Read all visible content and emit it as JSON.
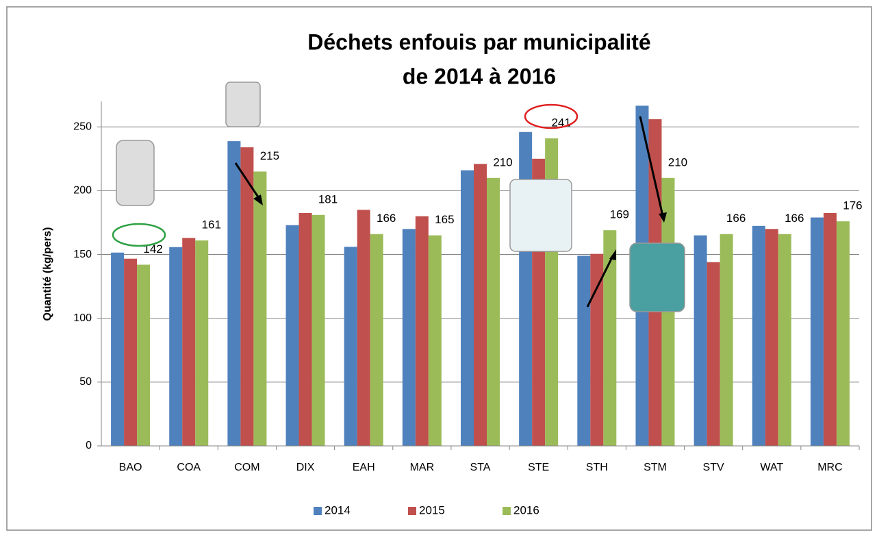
{
  "chart_data": {
    "type": "bar",
    "title": [
      "Déchets enfouis par municipalité",
      "de 2014 à 2016"
    ],
    "y_label": "Quantité (kg/pers)",
    "categories": [
      "BAO",
      "COA",
      "COM",
      "DIX",
      "EAH",
      "MAR",
      "STA",
      "STE",
      "STH",
      "STM",
      "STV",
      "WAT",
      "MRC"
    ],
    "series": [
      {
        "name": "2014",
        "color": "#4f81bd",
        "values": [
          151.5,
          155.8,
          238.8,
          173,
          156,
          170,
          216,
          246,
          149,
          266.6,
          165,
          172.4,
          179
        ]
      },
      {
        "name": "2015",
        "color": "#c0504d",
        "values": [
          146.7,
          163,
          234,
          182.5,
          185,
          180,
          221,
          225,
          150.5,
          256,
          144,
          170,
          182.5
        ]
      },
      {
        "name": "2016",
        "color": "#9bbb59",
        "values": [
          142,
          161,
          215,
          181,
          166,
          165,
          210,
          241,
          169,
          210,
          166,
          166,
          176
        ],
        "data_labels": true
      }
    ],
    "ylim": [
      0,
      270
    ],
    "yticks": [
      0,
      50,
      100,
      150,
      200,
      250
    ],
    "grid": true,
    "legend": "bottom"
  }
}
